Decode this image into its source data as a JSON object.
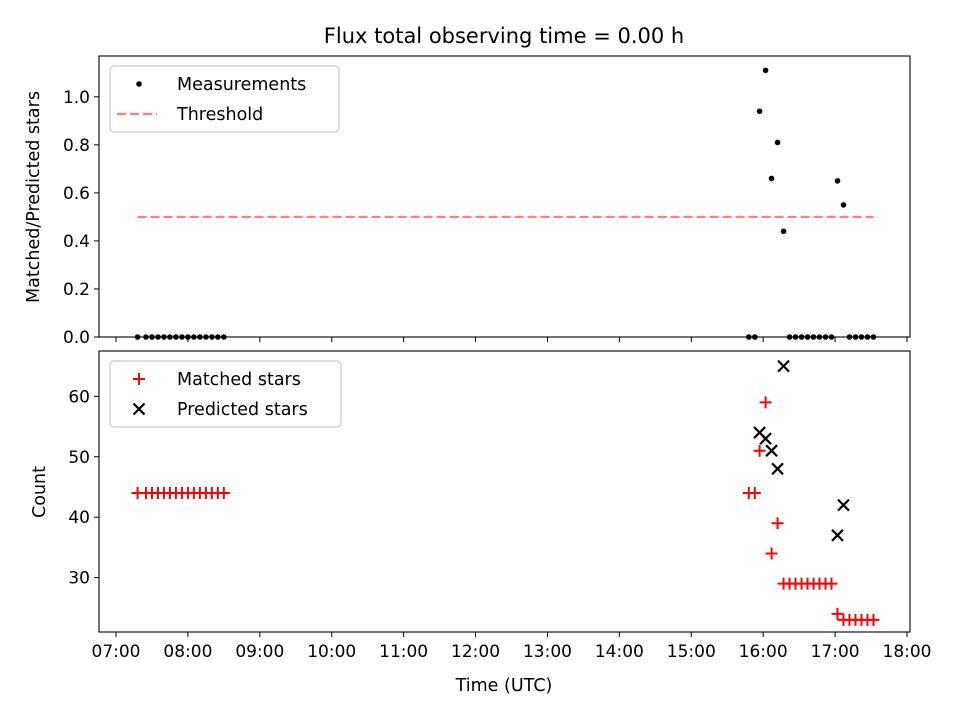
{
  "chart_data": [
    {
      "type": "scatter",
      "title": "Flux total observing time = 0.00 h",
      "xlabel": "",
      "ylabel": "Matched/Predicted stars",
      "xlim": [
        "07:00",
        "18:00"
      ],
      "ylim": [
        0,
        1.17
      ],
      "y_ticks": [
        "0.0",
        "0.2",
        "0.4",
        "0.6",
        "0.8",
        "1.0"
      ],
      "x_tick_labels_shown": false,
      "legend": {
        "placement": "top-left",
        "entries": [
          "Measurements",
          "Threshold"
        ]
      },
      "series": [
        {
          "name": "Measurements",
          "marker": "dot",
          "color": "#000000",
          "points": [
            [
              "07:18",
              0.0
            ],
            [
              "07:25",
              0.0
            ],
            [
              "07:30",
              0.0
            ],
            [
              "07:35",
              0.0
            ],
            [
              "07:40",
              0.0
            ],
            [
              "07:45",
              0.0
            ],
            [
              "07:50",
              0.0
            ],
            [
              "07:55",
              0.0
            ],
            [
              "08:00",
              0.0
            ],
            [
              "08:05",
              0.0
            ],
            [
              "08:10",
              0.0
            ],
            [
              "08:15",
              0.0
            ],
            [
              "08:20",
              0.0
            ],
            [
              "08:25",
              0.0
            ],
            [
              "08:30",
              0.0
            ],
            [
              "15:48",
              0.0
            ],
            [
              "15:53",
              0.0
            ],
            [
              "15:57",
              0.94
            ],
            [
              "16:02",
              1.11
            ],
            [
              "16:07",
              0.66
            ],
            [
              "16:12",
              0.81
            ],
            [
              "16:17",
              0.44
            ],
            [
              "16:22",
              0.0
            ],
            [
              "16:27",
              0.0
            ],
            [
              "16:32",
              0.0
            ],
            [
              "16:37",
              0.0
            ],
            [
              "16:42",
              0.0
            ],
            [
              "16:47",
              0.0
            ],
            [
              "16:52",
              0.0
            ],
            [
              "16:57",
              0.0
            ],
            [
              "17:02",
              0.65
            ],
            [
              "17:07",
              0.55
            ],
            [
              "17:12",
              0.0
            ],
            [
              "17:17",
              0.0
            ],
            [
              "17:22",
              0.0
            ],
            [
              "17:27",
              0.0
            ],
            [
              "17:32",
              0.0
            ]
          ]
        },
        {
          "name": "Threshold",
          "style": "dashed-line",
          "color": "#ff7f7f",
          "points": [
            [
              "07:18",
              0.5
            ],
            [
              "17:32",
              0.5
            ]
          ]
        }
      ]
    },
    {
      "type": "scatter",
      "title": "",
      "xlabel": "Time (UTC)",
      "ylabel": "Count",
      "xlim": [
        "07:00",
        "18:00"
      ],
      "ylim": [
        21,
        67.5
      ],
      "y_ticks": [
        "30",
        "40",
        "50",
        "60"
      ],
      "x_ticks": [
        "07:00",
        "08:00",
        "09:00",
        "10:00",
        "11:00",
        "12:00",
        "13:00",
        "14:00",
        "15:00",
        "16:00",
        "17:00",
        "18:00"
      ],
      "legend": {
        "placement": "top-left",
        "entries": [
          "Matched stars",
          "Predicted stars"
        ]
      },
      "series": [
        {
          "name": "Matched stars",
          "marker": "plus",
          "color": "#ff0000",
          "points": [
            [
              "07:18",
              44
            ],
            [
              "07:25",
              44
            ],
            [
              "07:30",
              44
            ],
            [
              "07:35",
              44
            ],
            [
              "07:40",
              44
            ],
            [
              "07:45",
              44
            ],
            [
              "07:50",
              44
            ],
            [
              "07:55",
              44
            ],
            [
              "08:00",
              44
            ],
            [
              "08:05",
              44
            ],
            [
              "08:10",
              44
            ],
            [
              "08:15",
              44
            ],
            [
              "08:20",
              44
            ],
            [
              "08:25",
              44
            ],
            [
              "08:30",
              44
            ],
            [
              "15:48",
              44
            ],
            [
              "15:53",
              44
            ],
            [
              "15:57",
              51
            ],
            [
              "16:02",
              59
            ],
            [
              "16:07",
              34
            ],
            [
              "16:12",
              39
            ],
            [
              "16:17",
              29
            ],
            [
              "16:22",
              29
            ],
            [
              "16:27",
              29
            ],
            [
              "16:32",
              29
            ],
            [
              "16:37",
              29
            ],
            [
              "16:42",
              29
            ],
            [
              "16:47",
              29
            ],
            [
              "16:52",
              29
            ],
            [
              "16:57",
              29
            ],
            [
              "17:02",
              24
            ],
            [
              "17:07",
              23
            ],
            [
              "17:12",
              23
            ],
            [
              "17:17",
              23
            ],
            [
              "17:22",
              23
            ],
            [
              "17:27",
              23
            ],
            [
              "17:32",
              23
            ]
          ]
        },
        {
          "name": "Predicted stars",
          "marker": "x",
          "color": "#000000",
          "points": [
            [
              "15:57",
              54
            ],
            [
              "16:02",
              53
            ],
            [
              "16:07",
              51
            ],
            [
              "16:12",
              48
            ],
            [
              "16:17",
              65
            ],
            [
              "17:02",
              37
            ],
            [
              "17:07",
              42
            ]
          ]
        }
      ]
    }
  ]
}
